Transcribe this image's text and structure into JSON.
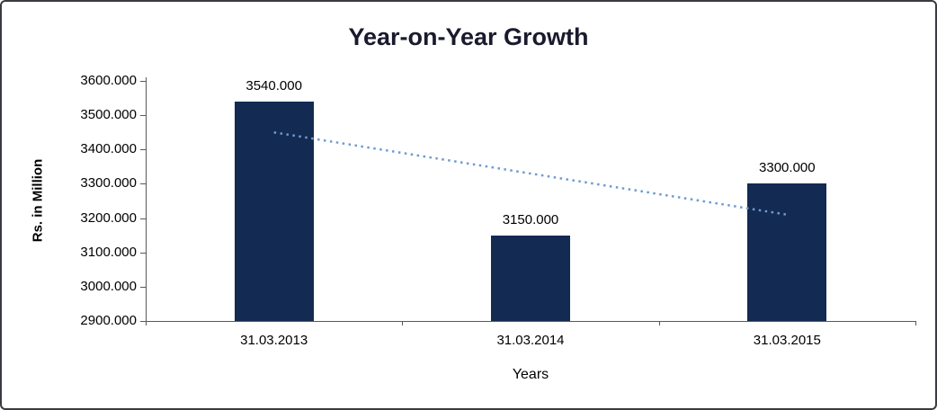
{
  "chart_data": {
    "type": "bar",
    "title": "Year-on-Year Growth",
    "xlabel": "Years",
    "ylabel": "Rs. in Million",
    "categories": [
      "31.03.2013",
      "31.03.2014",
      "31.03.2015"
    ],
    "values": [
      3540,
      3150,
      3300
    ],
    "data_labels": [
      "3540.000",
      "3150.000",
      "3300.000"
    ],
    "ylim": [
      2900,
      3600
    ],
    "ytick_labels": [
      "3600.000",
      "3500.000",
      "3400.000",
      "3300.000",
      "3200.000",
      "3100.000",
      "3000.000",
      "2900.000"
    ],
    "ytick_values": [
      3600,
      3500,
      3400,
      3300,
      3200,
      3100,
      3000,
      2900
    ],
    "grid": false,
    "legend": "none",
    "trendline": {
      "style": "dotted",
      "start_value": 3450,
      "end_value": 3210,
      "color": "#6E9BD1"
    },
    "colors": {
      "bar": "#132A52",
      "axis": "#595959",
      "title": "#1A1A2E",
      "text": "#000000"
    }
  }
}
